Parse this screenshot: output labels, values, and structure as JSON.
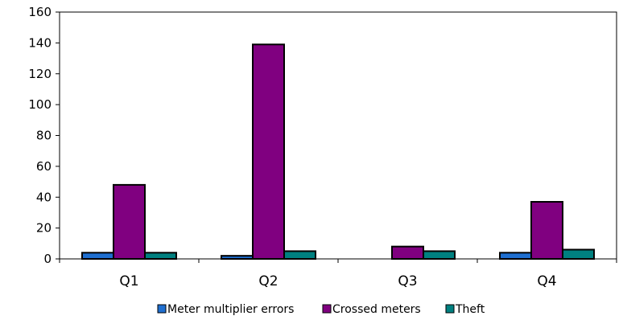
{
  "chart_data": {
    "type": "bar",
    "title": "",
    "xlabel": "",
    "ylabel": "",
    "categories": [
      "Q1",
      "Q2",
      "Q3",
      "Q4"
    ],
    "ylim": [
      0,
      160
    ],
    "yticks": [
      0,
      20,
      40,
      60,
      80,
      100,
      120,
      140,
      160
    ],
    "grid": false,
    "legend_position": "bottom",
    "series": [
      {
        "name": "Meter multiplier errors",
        "color": "#1f6fd0",
        "values": [
          4,
          2,
          0,
          4
        ]
      },
      {
        "name": "Crossed meters",
        "color": "#800080",
        "values": [
          48,
          139,
          8,
          37
        ]
      },
      {
        "name": "Theft",
        "color": "#008080",
        "values": [
          4,
          5,
          5,
          6
        ]
      }
    ]
  }
}
